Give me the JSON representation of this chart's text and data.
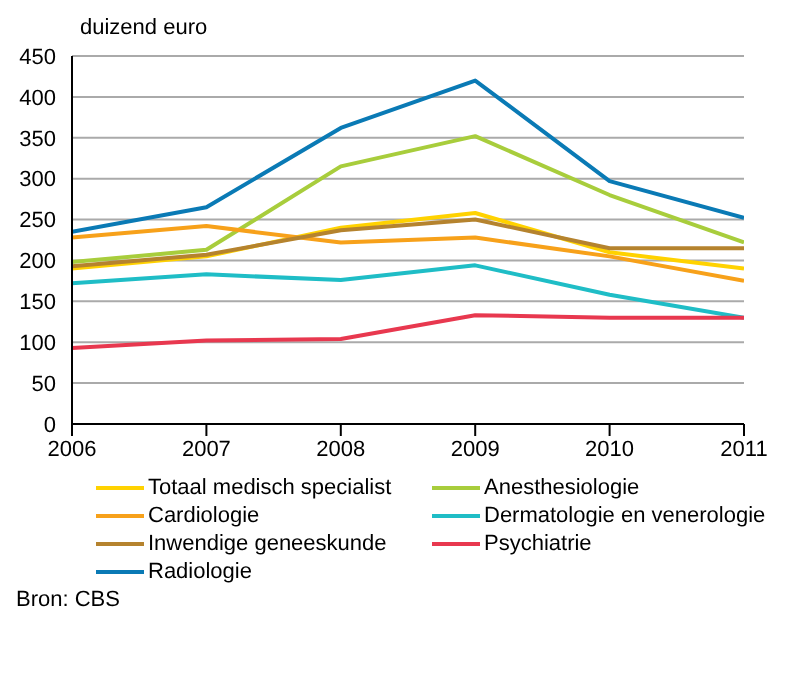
{
  "chart_data": {
    "type": "line",
    "ylabel": "duizend euro",
    "x": [
      2006,
      2007,
      2008,
      2009,
      2010,
      2011
    ],
    "xlim": [
      2006,
      2011
    ],
    "xticks": [
      2006,
      2007,
      2008,
      2009,
      2010,
      2011
    ],
    "ylim": [
      0,
      450
    ],
    "yticks": [
      0,
      50,
      100,
      150,
      200,
      250,
      300,
      350,
      400,
      450
    ],
    "grid": "y",
    "legend": "bottom",
    "marker": "none",
    "line_style": "solid",
    "annotations": [
      "Bron: CBS"
    ],
    "series": [
      {
        "name": "Totaal medisch specialist",
        "color": "#ffd200",
        "values": [
          190,
          205,
          240,
          258,
          210,
          190
        ]
      },
      {
        "name": "Anesthesiologie",
        "color": "#a8cd3c",
        "values": [
          198,
          213,
          315,
          352,
          280,
          222
        ]
      },
      {
        "name": "Cardiologie",
        "color": "#f7a11a",
        "values": [
          228,
          242,
          222,
          228,
          205,
          175
        ]
      },
      {
        "name": "Dermatologie en venerologie",
        "color": "#1fbdc6",
        "values": [
          172,
          183,
          176,
          194,
          158,
          130
        ]
      },
      {
        "name": "Inwendige geneeskunde",
        "color": "#b5832e",
        "values": [
          193,
          207,
          237,
          250,
          215,
          215
        ]
      },
      {
        "name": "Psychiatrie",
        "color": "#e8384f",
        "values": [
          93,
          102,
          104,
          133,
          130,
          130
        ]
      },
      {
        "name": "Radiologie",
        "color": "#0a7ab5",
        "values": [
          235,
          265,
          362,
          420,
          297,
          252
        ]
      }
    ]
  }
}
